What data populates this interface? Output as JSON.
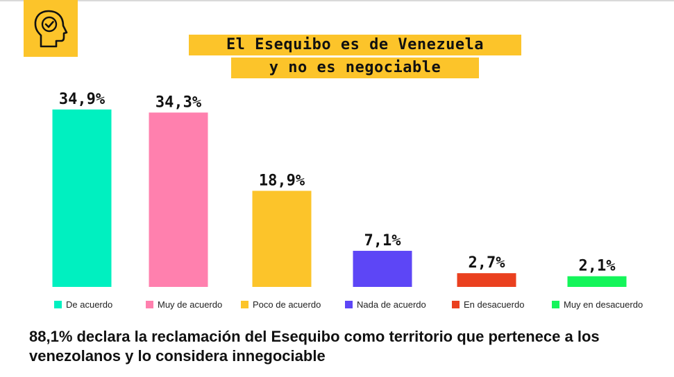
{
  "title": {
    "line1": "El Esequibo es de Venezuela",
    "line2": "y no es negociable"
  },
  "logo": {
    "icon": "head-checkmark-icon",
    "color": "#fcc42a"
  },
  "chart_data": {
    "type": "bar",
    "title": "El Esequibo es de Venezuela y no es negociable",
    "categories": [
      "De acuerdo",
      "Muy de acuerdo",
      "Poco de acuerdo",
      "Nada de acuerdo",
      "En desacuerdo",
      "Muy en desacuerdo"
    ],
    "values": [
      34.9,
      34.3,
      18.9,
      7.1,
      2.7,
      2.1
    ],
    "value_labels": [
      "34,9%",
      "34,3%",
      "18,9%",
      "7,1%",
      "2,7%",
      "2,1%"
    ],
    "colors": [
      "#00f0c0",
      "#ff80ae",
      "#fcc42a",
      "#5d46f6",
      "#ea401f",
      "#14f55a"
    ],
    "ylim": [
      0,
      34.9
    ],
    "grid": false,
    "legend": "bottom"
  },
  "legend": [
    {
      "label": "De acuerdo",
      "color": "#00f0c0"
    },
    {
      "label": "Muy de acuerdo",
      "color": "#ff80ae"
    },
    {
      "label": "Poco de acuerdo",
      "color": "#fcc42a"
    },
    {
      "label": "Nada de acuerdo",
      "color": "#5d46f6"
    },
    {
      "label": "En desacuerdo",
      "color": "#ea401f"
    },
    {
      "label": "Muy en desacuerdo",
      "color": "#14f55a"
    }
  ],
  "footer": "88,1% declara la reclamación del Esequibo como territorio que pertenece a los venezolanos y lo considera innegociable"
}
